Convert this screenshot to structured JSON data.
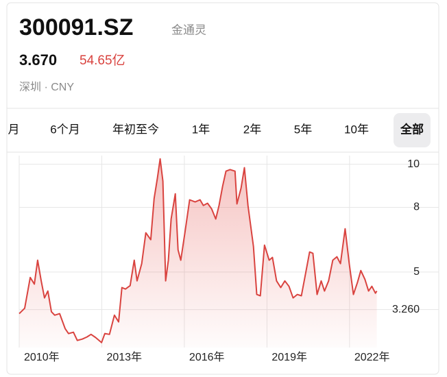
{
  "header": {
    "symbol": "300091.SZ",
    "name": "金通灵",
    "price": "3.670",
    "market_cap": "54.65亿",
    "exchange": "深圳 · CNY"
  },
  "tabs": [
    "月",
    "6个月",
    "年初至今",
    "1年",
    "2年",
    "5年",
    "10年",
    "全部"
  ],
  "selected_tab": 7,
  "chart_data": {
    "type": "line",
    "area": true,
    "color": "#d9433f",
    "x": [
      2010.0,
      2010.2,
      2010.4,
      2010.55,
      2010.67,
      2010.8,
      2010.92,
      2011.04,
      2011.17,
      2011.29,
      2011.47,
      2011.67,
      2011.79,
      2011.97,
      2012.11,
      2012.29,
      2012.46,
      2012.61,
      2012.78,
      2012.99,
      2013.11,
      2013.28,
      2013.46,
      2013.61,
      2013.73,
      2013.86,
      2014.03,
      2014.18,
      2014.28,
      2014.45,
      2014.6,
      2014.78,
      2014.9,
      2015.02,
      2015.12,
      2015.22,
      2015.32,
      2015.42,
      2015.52,
      2015.67,
      2015.77,
      2015.87,
      2016.02,
      2016.19,
      2016.39,
      2016.57,
      2016.69,
      2016.84,
      2016.99,
      2017.14,
      2017.26,
      2017.39,
      2017.51,
      2017.66,
      2017.84,
      2017.91,
      2018.06,
      2018.18,
      2018.31,
      2018.51,
      2018.63,
      2018.76,
      2018.91,
      2019.08,
      2019.2,
      2019.35,
      2019.5,
      2019.65,
      2019.8,
      2019.95,
      2020.1,
      2020.25,
      2020.4,
      2020.55,
      2020.67,
      2020.82,
      2020.97,
      2021.09,
      2021.24,
      2021.39,
      2021.54,
      2021.67,
      2021.84,
      2021.99,
      2022.14,
      2022.29,
      2022.41,
      2022.56,
      2022.69,
      2022.81,
      2022.94,
      2022.99
    ],
    "values": [
      3.07,
      3.32,
      4.75,
      4.44,
      5.55,
      4.59,
      3.8,
      4.12,
      3.16,
      3.0,
      3.07,
      2.37,
      2.15,
      2.21,
      1.83,
      1.89,
      1.99,
      2.11,
      1.96,
      1.73,
      2.15,
      2.11,
      3.0,
      2.69,
      4.28,
      4.21,
      4.37,
      5.55,
      4.59,
      5.39,
      6.82,
      6.5,
      8.41,
      9.36,
      10.25,
      9.21,
      4.59,
      5.55,
      7.46,
      8.63,
      6.03,
      5.55,
      6.82,
      8.35,
      8.25,
      8.35,
      8.09,
      8.19,
      7.93,
      7.46,
      8.09,
      8.98,
      9.68,
      9.75,
      9.68,
      8.16,
      8.89,
      9.84,
      8.09,
      6.18,
      3.96,
      3.9,
      6.25,
      5.55,
      5.68,
      4.59,
      4.28,
      4.59,
      4.34,
      3.8,
      3.96,
      3.9,
      4.91,
      5.93,
      5.87,
      3.96,
      4.59,
      4.12,
      4.59,
      5.55,
      5.71,
      5.39,
      7.01,
      5.39,
      3.96,
      4.53,
      5.07,
      4.66,
      4.12,
      4.34,
      4.02,
      4.12
    ],
    "xlim": [
      2010,
      2023
    ],
    "ylim": [
      1.5,
      10.4
    ],
    "xticks": [
      {
        "value": 2010,
        "label": "2010年"
      },
      {
        "value": 2013,
        "label": "2013年"
      },
      {
        "value": 2016,
        "label": "2016年"
      },
      {
        "value": 2019,
        "label": "2019年"
      },
      {
        "value": 2022,
        "label": "2022年"
      }
    ],
    "yticks": [
      10,
      8,
      5,
      {
        "value": 3.26,
        "label": "3.260"
      }
    ],
    "grid": true
  }
}
